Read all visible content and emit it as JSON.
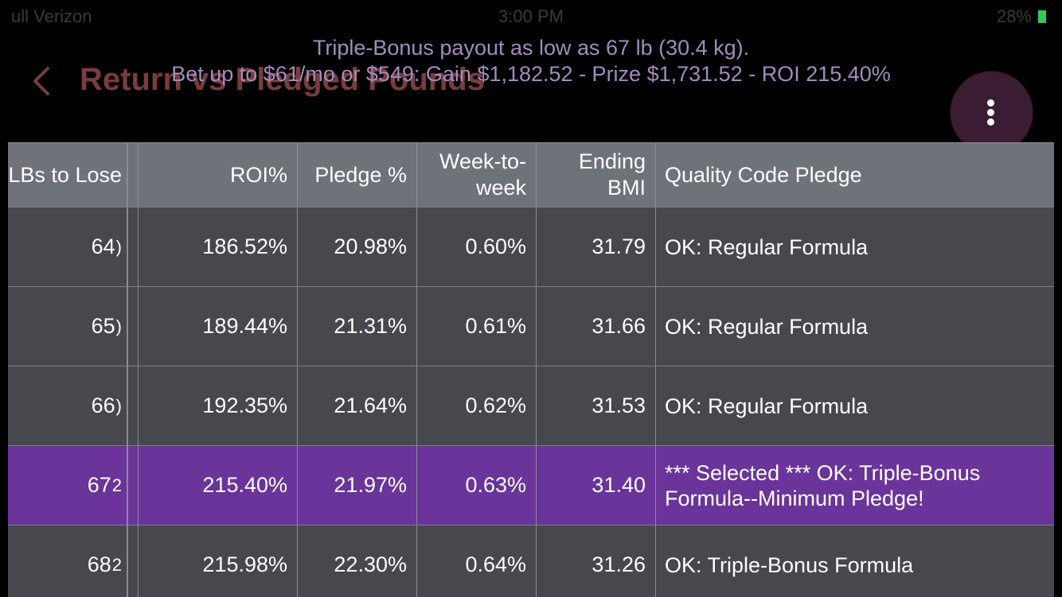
{
  "status_bar": {
    "carrier": "ull Verizon",
    "time": "3:00 PM",
    "battery": "28%"
  },
  "nav": {
    "title": "Return vs Pledged Pounds",
    "back_icon": "chevron-left-icon",
    "menu_icon": "more-vertical-icon"
  },
  "banner": {
    "line1": "Triple-Bonus payout as low as 67 lb (30.4 kg).",
    "line2": "Bet up to $61/mo or $549: Gain $1,182.52 - Prize $1,731.52 - ROI 215.40%"
  },
  "table": {
    "headers": {
      "lbs": "LBs to Lose",
      "roi": "ROI%",
      "pledge": "Pledge %",
      "week": "Week-to-week",
      "bmi": "Ending BMI",
      "quality": "Quality Code Pledge"
    },
    "rows": [
      {
        "lbs": "64",
        "trunc": ")",
        "roi": "186.52%",
        "pledge": "20.98%",
        "week": "0.60%",
        "bmi": "31.79",
        "quality": "OK: Regular Formula"
      },
      {
        "lbs": "65",
        "trunc": ")",
        "roi": "189.44%",
        "pledge": "21.31%",
        "week": "0.61%",
        "bmi": "31.66",
        "quality": "OK: Regular Formula"
      },
      {
        "lbs": "66",
        "trunc": ")",
        "roi": "192.35%",
        "pledge": "21.64%",
        "week": "0.62%",
        "bmi": "31.53",
        "quality": "OK: Regular Formula"
      },
      {
        "lbs": "67",
        "trunc": "2",
        "roi": "215.40%",
        "pledge": "21.97%",
        "week": "0.63%",
        "bmi": "31.40",
        "quality": "*** Selected *** OK: Triple-Bonus Formula--Minimum Pledge!",
        "selected": true
      },
      {
        "lbs": "68",
        "trunc": "2",
        "roi": "215.98%",
        "pledge": "22.30%",
        "week": "0.64%",
        "bmi": "31.26",
        "quality": "OK: Triple-Bonus Formula"
      }
    ]
  },
  "colors": {
    "header_bg": "#6f7279",
    "row_bg": "#46484e",
    "selected_bg": "#6a349a",
    "title_color": "#7a3c3c",
    "banner_color": "#a38bbf"
  }
}
